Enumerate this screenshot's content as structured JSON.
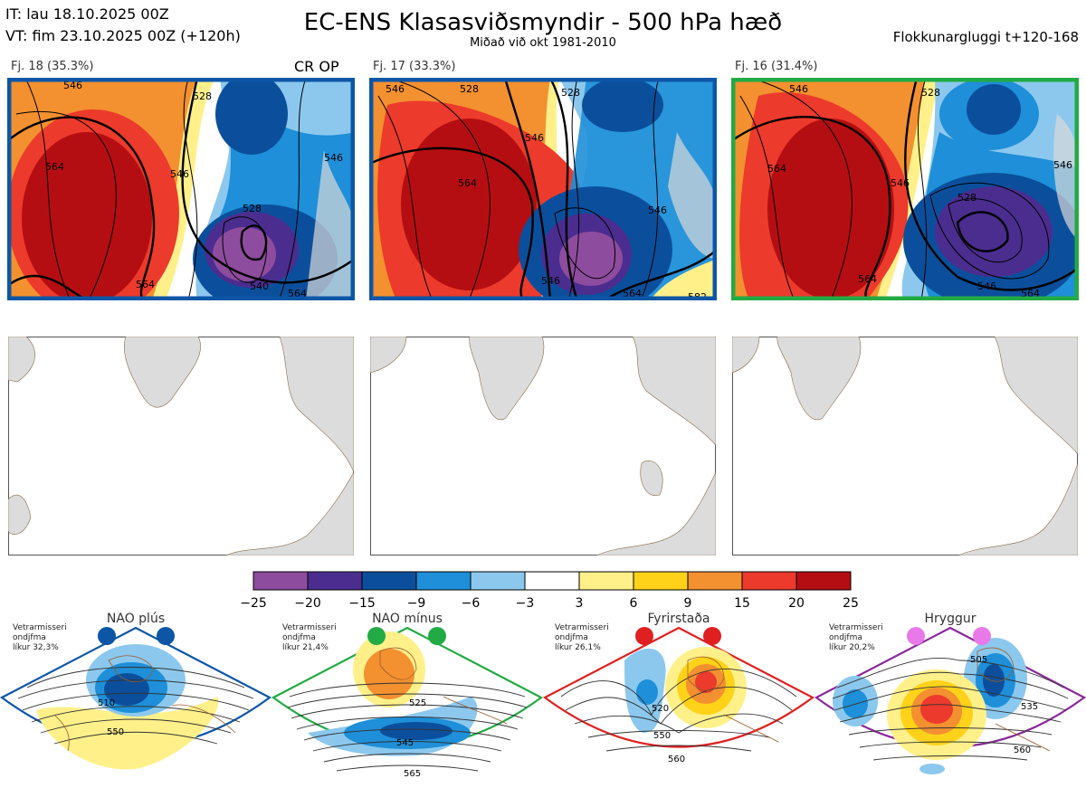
{
  "header": {
    "it": "IT: lau 18.10.2025 00Z",
    "vt": "VT: fim 23.10.2025 00Z  (+120h)",
    "title": "EC-ENS Klasasviðsmyndir - 500 hPa hæð",
    "subtitle": "Miðað við okt 1981-2010",
    "window": "Flokkunargluggi t+120-168"
  },
  "clusters": [
    {
      "label": "Fj. 18 (35.3%)",
      "border": "#0d56a6",
      "tag": "CR OP",
      "contour_labels": [
        "546",
        "528",
        "564",
        "546",
        "528",
        "546",
        "564",
        "540",
        "564"
      ]
    },
    {
      "label": "Fj. 17 (33.3%)",
      "border": "#0d56a6",
      "tag": "",
      "contour_labels": [
        "546",
        "528",
        "528",
        "546",
        "564",
        "546",
        "546",
        "564",
        "582"
      ]
    },
    {
      "label": "Fj. 16 (31.4%)",
      "border": "#22aa44",
      "tag": "",
      "contour_labels": [
        "546",
        "528",
        "564",
        "546",
        "528",
        "546",
        "564",
        "546",
        "564"
      ]
    }
  ],
  "colorbar": {
    "ticks": [
      "−25",
      "−20",
      "−15",
      "−9",
      "−6",
      "−3",
      "3",
      "6",
      "9",
      "15",
      "20",
      "25"
    ],
    "colors": [
      "#8e4c9e",
      "#4b2d8f",
      "#0b4f9c",
      "#1e8fd8",
      "#8cc8ee",
      "#ffffff",
      "#fff08a",
      "#ffd21a",
      "#f39030",
      "#ec3a2c",
      "#b50e12"
    ]
  },
  "regimes": [
    {
      "title": "NAO plús",
      "note": [
        "Vetrarmisseri",
        "ondjfma",
        "líkur 32,3%"
      ],
      "color": "#0d56a6",
      "dot": "#0d56a6",
      "labels": [
        "510",
        "550"
      ]
    },
    {
      "title": "NAO mínus",
      "note": [
        "Vetrarmisseri",
        "ondjfma",
        "líkur 21,4%"
      ],
      "color": "#22aa44",
      "dot": "#22aa44",
      "labels": [
        "525",
        "545",
        "565"
      ]
    },
    {
      "title": "Fyrirstaða",
      "note": [
        "Vetrarmisseri",
        "ondjfma",
        "líkur 26,1%"
      ],
      "color": "#e02020",
      "dot": "#e02020",
      "labels": [
        "520",
        "550",
        "560"
      ]
    },
    {
      "title": "Hryggur",
      "note": [
        "Vetrarmisseri",
        "ondjfma",
        "líkur 20,2%"
      ],
      "color": "#8a2a9a",
      "dot": "#e879e8",
      "labels": [
        "505",
        "535",
        "560"
      ]
    }
  ]
}
